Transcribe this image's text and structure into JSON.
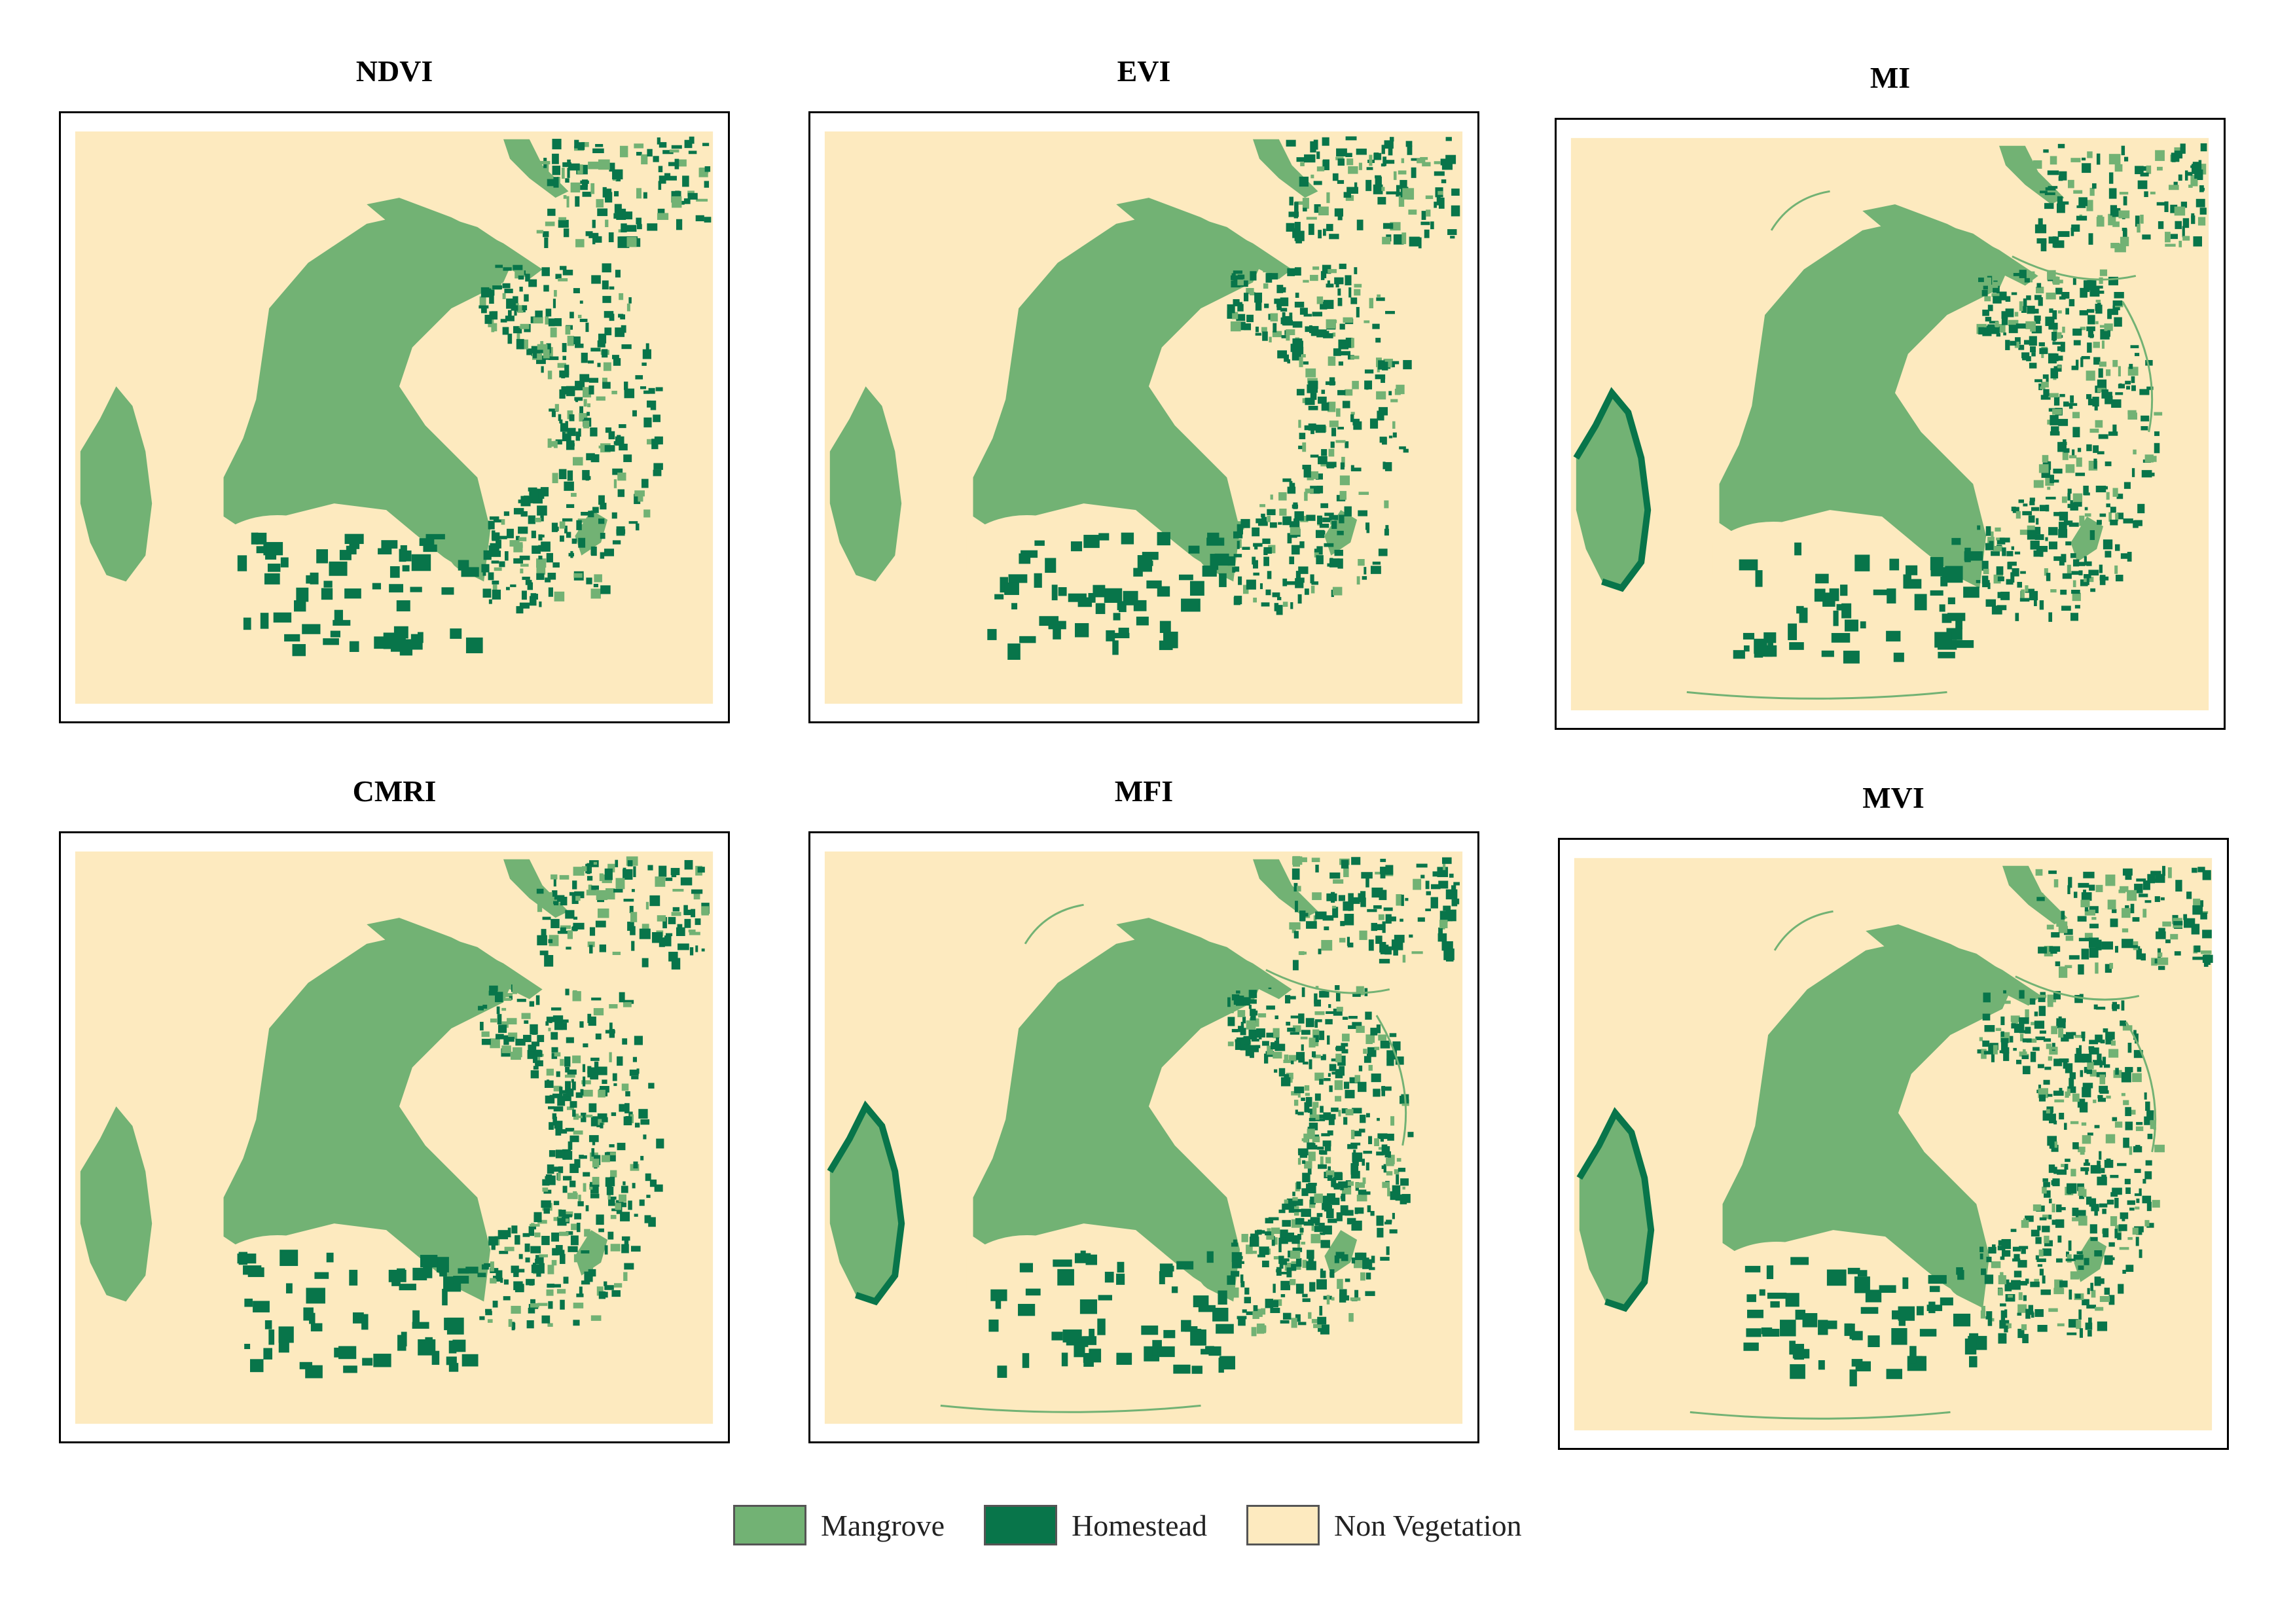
{
  "colors": {
    "mangrove": "#72b274",
    "homestead": "#08754a",
    "non_vegetation": "#fdeabf"
  },
  "panels": [
    {
      "title": "NDVI"
    },
    {
      "title": "EVI"
    },
    {
      "title": "MI"
    },
    {
      "title": "CMRI"
    },
    {
      "title": "MFI"
    },
    {
      "title": "MVI"
    }
  ],
  "legend": [
    {
      "label": "Mangrove",
      "color": "#72b274"
    },
    {
      "label": "Homestead",
      "color": "#08754a"
    },
    {
      "label": "Non Vegetation",
      "color": "#fdeabf"
    }
  ]
}
